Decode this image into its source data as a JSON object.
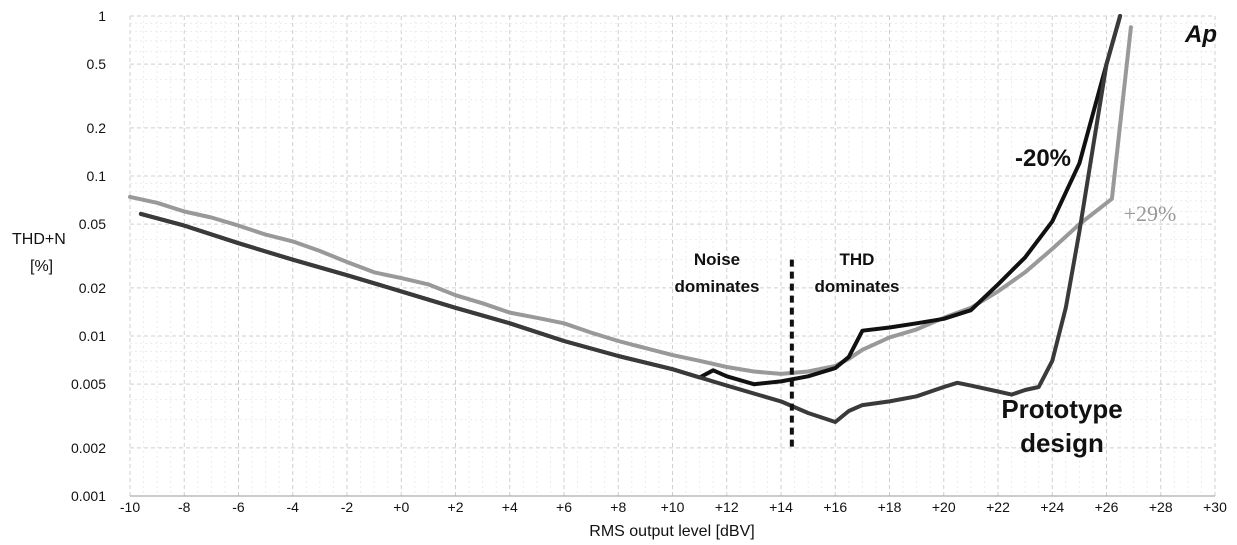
{
  "chart_data": {
    "type": "line",
    "xlabel": "RMS output level [dBV]",
    "ylabel_line1": "THD+N",
    "ylabel_line2": "[%]",
    "xlim": [
      -10,
      30
    ],
    "ylim": [
      0.001,
      1
    ],
    "y_scale": "log",
    "grid": true,
    "x_ticks": [
      {
        "value": -10,
        "label": "-10"
      },
      {
        "value": -8,
        "label": "-8"
      },
      {
        "value": -6,
        "label": "-6"
      },
      {
        "value": -4,
        "label": "-4"
      },
      {
        "value": -2,
        "label": "-2"
      },
      {
        "value": 0,
        "label": "+0"
      },
      {
        "value": 2,
        "label": "+2"
      },
      {
        "value": 4,
        "label": "+4"
      },
      {
        "value": 6,
        "label": "+6"
      },
      {
        "value": 8,
        "label": "+8"
      },
      {
        "value": 10,
        "label": "+10"
      },
      {
        "value": 12,
        "label": "+12"
      },
      {
        "value": 14,
        "label": "+14"
      },
      {
        "value": 16,
        "label": "+16"
      },
      {
        "value": 18,
        "label": "+18"
      },
      {
        "value": 20,
        "label": "+20"
      },
      {
        "value": 22,
        "label": "+22"
      },
      {
        "value": 24,
        "label": "+24"
      },
      {
        "value": 26,
        "label": "+26"
      },
      {
        "value": 28,
        "label": "+28"
      },
      {
        "value": 30,
        "label": "+30"
      }
    ],
    "y_ticks": [
      {
        "value": 1,
        "label": "1"
      },
      {
        "value": 0.5,
        "label": "0.5"
      },
      {
        "value": 0.2,
        "label": "0.2"
      },
      {
        "value": 0.1,
        "label": "0.1"
      },
      {
        "value": 0.05,
        "label": "0.05"
      },
      {
        "value": 0.02,
        "label": "0.02"
      },
      {
        "value": 0.01,
        "label": "0.01"
      },
      {
        "value": 0.005,
        "label": "0.005"
      },
      {
        "value": 0.002,
        "label": "0.002"
      },
      {
        "value": 0.001,
        "label": "0.001"
      }
    ],
    "series": [
      {
        "color": "#999999",
        "x": [
          -10,
          -9,
          -8,
          -7,
          -6,
          -5,
          -4,
          -3,
          -2,
          -1,
          0,
          1,
          2,
          3,
          4,
          5,
          6,
          7,
          8,
          9,
          10,
          11,
          12,
          13,
          14,
          15,
          16,
          16.5,
          17,
          18,
          19,
          20,
          21,
          22,
          23,
          24,
          25,
          26.2,
          26.9
        ],
        "y": [
          0.074,
          0.068,
          0.06,
          0.055,
          0.049,
          0.043,
          0.039,
          0.034,
          0.029,
          0.025,
          0.023,
          0.021,
          0.018,
          0.016,
          0.014,
          0.013,
          0.012,
          0.0105,
          0.0093,
          0.0084,
          0.0076,
          0.007,
          0.0064,
          0.006,
          0.0058,
          0.006,
          0.0065,
          0.0072,
          0.0082,
          0.0098,
          0.011,
          0.013,
          0.015,
          0.019,
          0.025,
          0.035,
          0.05,
          0.072,
          0.85
        ]
      },
      {
        "color": "#111111",
        "x": [
          -9.6,
          -8,
          -6,
          -4,
          -2,
          0,
          2,
          4,
          6,
          8,
          10,
          11,
          11.5,
          12,
          13,
          14,
          15,
          16,
          16.5,
          17,
          18,
          19,
          20,
          21,
          22,
          23,
          24,
          25,
          26,
          26.5
        ],
        "y": [
          0.058,
          0.049,
          0.038,
          0.03,
          0.024,
          0.019,
          0.015,
          0.012,
          0.0093,
          0.0075,
          0.0062,
          0.0055,
          0.0061,
          0.0056,
          0.005,
          0.0052,
          0.0056,
          0.0063,
          0.0074,
          0.0108,
          0.0113,
          0.012,
          0.0128,
          0.0145,
          0.021,
          0.031,
          0.052,
          0.12,
          0.5,
          1.0
        ]
      },
      {
        "color": "#3a3a3a",
        "x": [
          -9.6,
          -8,
          -6,
          -4,
          -2,
          0,
          2,
          4,
          6,
          8,
          10,
          12,
          14,
          15,
          16,
          16.5,
          17,
          18,
          19,
          20,
          20.5,
          21,
          22,
          22.5,
          23,
          23.5,
          24,
          24.5,
          25,
          25.5,
          26,
          26.5
        ],
        "y": [
          0.058,
          0.049,
          0.038,
          0.03,
          0.024,
          0.019,
          0.015,
          0.012,
          0.0093,
          0.0075,
          0.0062,
          0.0049,
          0.0039,
          0.0033,
          0.0029,
          0.0034,
          0.0037,
          0.0039,
          0.0042,
          0.0048,
          0.0051,
          0.0049,
          0.0045,
          0.0043,
          0.0046,
          0.0048,
          0.007,
          0.015,
          0.045,
          0.15,
          0.5,
          1.0
        ]
      }
    ],
    "divider": {
      "x": 14.4,
      "y_top": 0.03,
      "y_bottom": 0.0019
    },
    "annotations": {
      "noise_line1": "Noise",
      "noise_line2": "dominates",
      "thd_line1": "THD",
      "thd_line2": "dominates",
      "minus20": "-20%",
      "plus29": "+29%",
      "proto_line1": "Prototype",
      "proto_line2": "design",
      "logo": "Ap"
    }
  }
}
